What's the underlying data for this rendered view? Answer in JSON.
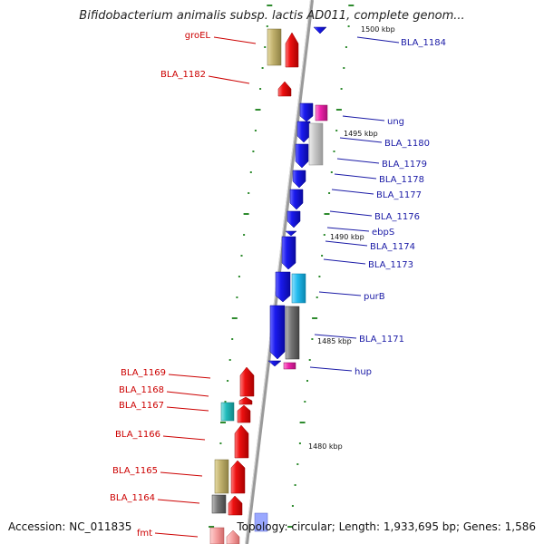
{
  "title": "Bifidobacterium animalis subsp. lactis AD011, complete genom...",
  "footer": {
    "accession": "Accession: NC_011835",
    "summary": "Topology: circular; Length: 1,933,695 bp; Genes: 1,586"
  },
  "ticks": [
    "1500 kbp",
    "1495 kbp",
    "1490 kbp",
    "1485 kbp",
    "1480 kbp"
  ],
  "left_labels": [
    "groEL",
    "BLA_1182",
    "BLA_1169",
    "BLA_1168",
    "BLA_1167",
    "BLA_1166",
    "BLA_1165",
    "BLA_1164",
    "fmt"
  ],
  "right_labels": [
    "BLA_1184",
    "ung",
    "BLA_1180",
    "BLA_1179",
    "BLA_1178",
    "BLA_1177",
    "BLA_1176",
    "ebpS",
    "BLA_1174",
    "BLA_1173",
    "purB",
    "BLA_1171",
    "hup"
  ],
  "colors": {
    "forward_gene": "#ee1111",
    "reverse_gene": "#1a1aee",
    "khaki": "#c2b26e",
    "cyan": "#22bbee",
    "magenta": "#ee22aa",
    "gray": "#777777",
    "light_gray": "#c8c8c8",
    "teal": "#22bbbb",
    "label_red": "#cc0000",
    "label_blue": "#1a1aa6"
  }
}
